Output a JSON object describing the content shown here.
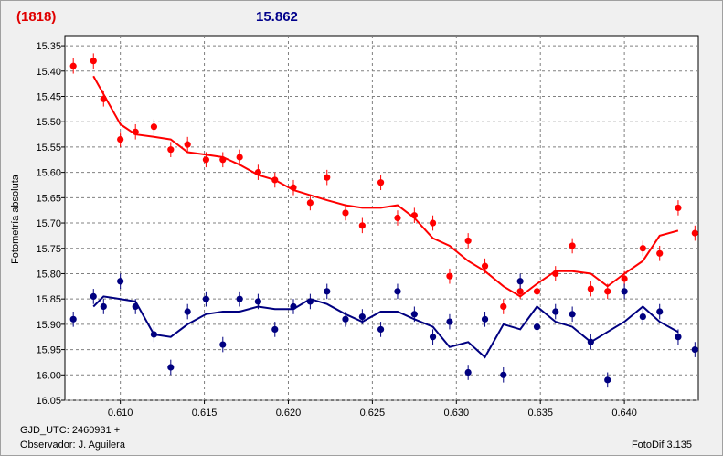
{
  "header": {
    "object_label": "(1818)",
    "magnitude": "15.862"
  },
  "footer": {
    "gjd": "GJD_UTC: 2460931 +",
    "observer": "Observador: J. Aguilera",
    "app": "FotoDif 3.135"
  },
  "chart_data": {
    "type": "scatter",
    "title": "",
    "xlabel": "",
    "ylabel": "Fotometría absoluta",
    "xlim": [
      0.6067,
      0.6444
    ],
    "ylim": [
      16.05,
      15.33
    ],
    "y_inverted": true,
    "grid": true,
    "x_ticks": [
      "0.610",
      "0.615",
      "0.620",
      "0.625",
      "0.630",
      "0.635",
      "0.640"
    ],
    "y_ticks": [
      "15.35",
      "15.40",
      "15.45",
      "15.50",
      "15.55",
      "15.60",
      "15.65",
      "15.70",
      "15.75",
      "15.80",
      "15.85",
      "15.90",
      "15.95",
      "16.00",
      "16.05"
    ],
    "series": [
      {
        "color": "#ff0000",
        "x": [
          0.6072,
          0.6084,
          0.609,
          0.61,
          0.6109,
          0.612,
          0.613,
          0.614,
          0.6151,
          0.6161,
          0.6171,
          0.6182,
          0.6192,
          0.6203,
          0.6213,
          0.6223,
          0.6234,
          0.6244,
          0.6255,
          0.6265,
          0.6275,
          0.6286,
          0.6296,
          0.6307,
          0.6317,
          0.6328,
          0.6338,
          0.6348,
          0.6359,
          0.6369,
          0.638,
          0.639,
          0.64,
          0.6411,
          0.6421,
          0.6432,
          0.6442
        ],
        "y": [
          15.39,
          15.38,
          15.455,
          15.535,
          15.52,
          15.51,
          15.555,
          15.545,
          15.575,
          15.575,
          15.57,
          15.6,
          15.615,
          15.63,
          15.66,
          15.61,
          15.68,
          15.705,
          15.62,
          15.69,
          15.685,
          15.7,
          15.805,
          15.735,
          15.785,
          15.865,
          15.835,
          15.835,
          15.8,
          15.745,
          15.83,
          15.835,
          15.81,
          15.75,
          15.76,
          15.67,
          15.72
        ],
        "err": [
          0.015,
          0.015,
          0.015,
          0.015,
          0.015,
          0.015,
          0.015,
          0.015,
          0.015,
          0.015,
          0.015,
          0.015,
          0.015,
          0.015,
          0.015,
          0.015,
          0.015,
          0.015,
          0.015,
          0.015,
          0.015,
          0.015,
          0.015,
          0.015,
          0.015,
          0.015,
          0.015,
          0.015,
          0.015,
          0.015,
          0.015,
          0.015,
          0.015,
          0.015,
          0.015,
          0.015,
          0.015
        ],
        "fit_x": [
          0.6084,
          0.61,
          0.6109,
          0.612,
          0.613,
          0.614,
          0.6151,
          0.6161,
          0.6171,
          0.6182,
          0.6192,
          0.6203,
          0.6213,
          0.6223,
          0.6234,
          0.6244,
          0.6255,
          0.6265,
          0.6275,
          0.6286,
          0.6296,
          0.6307,
          0.6317,
          0.6328,
          0.6338,
          0.6348,
          0.6359,
          0.6369,
          0.638,
          0.639,
          0.64,
          0.6411,
          0.6421,
          0.6432
        ],
        "fit_y": [
          15.41,
          15.505,
          15.525,
          15.53,
          15.535,
          15.56,
          15.565,
          15.57,
          15.585,
          15.605,
          15.615,
          15.635,
          15.645,
          15.655,
          15.665,
          15.67,
          15.67,
          15.665,
          15.69,
          15.73,
          15.745,
          15.775,
          15.795,
          15.825,
          15.845,
          15.82,
          15.795,
          15.795,
          15.8,
          15.825,
          15.8,
          15.775,
          15.725,
          15.715
        ]
      },
      {
        "color": "#000080",
        "x": [
          0.6072,
          0.6084,
          0.609,
          0.61,
          0.6109,
          0.612,
          0.613,
          0.614,
          0.6151,
          0.6161,
          0.6171,
          0.6182,
          0.6192,
          0.6203,
          0.6213,
          0.6223,
          0.6234,
          0.6244,
          0.6255,
          0.6265,
          0.6275,
          0.6286,
          0.6296,
          0.6307,
          0.6317,
          0.6328,
          0.6338,
          0.6348,
          0.6359,
          0.6369,
          0.638,
          0.639,
          0.64,
          0.6411,
          0.6421,
          0.6432,
          0.6442
        ],
        "y": [
          15.89,
          15.845,
          15.865,
          15.815,
          15.865,
          15.92,
          15.985,
          15.875,
          15.85,
          15.94,
          15.85,
          15.855,
          15.91,
          15.865,
          15.855,
          15.835,
          15.89,
          15.885,
          15.91,
          15.835,
          15.88,
          15.925,
          15.895,
          15.995,
          15.89,
          16.0,
          15.815,
          15.905,
          15.875,
          15.88,
          15.935,
          16.01,
          15.835,
          15.885,
          15.875,
          15.925,
          15.95
        ],
        "err": [
          0.015,
          0.015,
          0.015,
          0.015,
          0.015,
          0.015,
          0.015,
          0.015,
          0.015,
          0.015,
          0.015,
          0.015,
          0.015,
          0.015,
          0.015,
          0.015,
          0.015,
          0.015,
          0.015,
          0.015,
          0.015,
          0.015,
          0.015,
          0.015,
          0.015,
          0.015,
          0.015,
          0.015,
          0.015,
          0.015,
          0.015,
          0.015,
          0.015,
          0.015,
          0.015,
          0.015,
          0.015
        ],
        "fit_x": [
          0.6084,
          0.609,
          0.61,
          0.6109,
          0.612,
          0.613,
          0.614,
          0.6151,
          0.6161,
          0.6171,
          0.6182,
          0.6192,
          0.6203,
          0.6213,
          0.6223,
          0.6234,
          0.6244,
          0.6255,
          0.6265,
          0.6275,
          0.6286,
          0.6296,
          0.6307,
          0.6317,
          0.6328,
          0.6338,
          0.6348,
          0.6359,
          0.6369,
          0.638,
          0.639,
          0.64,
          0.6411,
          0.6421,
          0.6432
        ],
        "fit_y": [
          15.865,
          15.845,
          15.85,
          15.855,
          15.92,
          15.925,
          15.9,
          15.88,
          15.875,
          15.875,
          15.865,
          15.87,
          15.87,
          15.85,
          15.86,
          15.88,
          15.895,
          15.875,
          15.875,
          15.89,
          15.905,
          15.945,
          15.935,
          15.965,
          15.9,
          15.91,
          15.865,
          15.895,
          15.905,
          15.935,
          15.915,
          15.895,
          15.865,
          15.895,
          15.915
        ]
      }
    ]
  }
}
